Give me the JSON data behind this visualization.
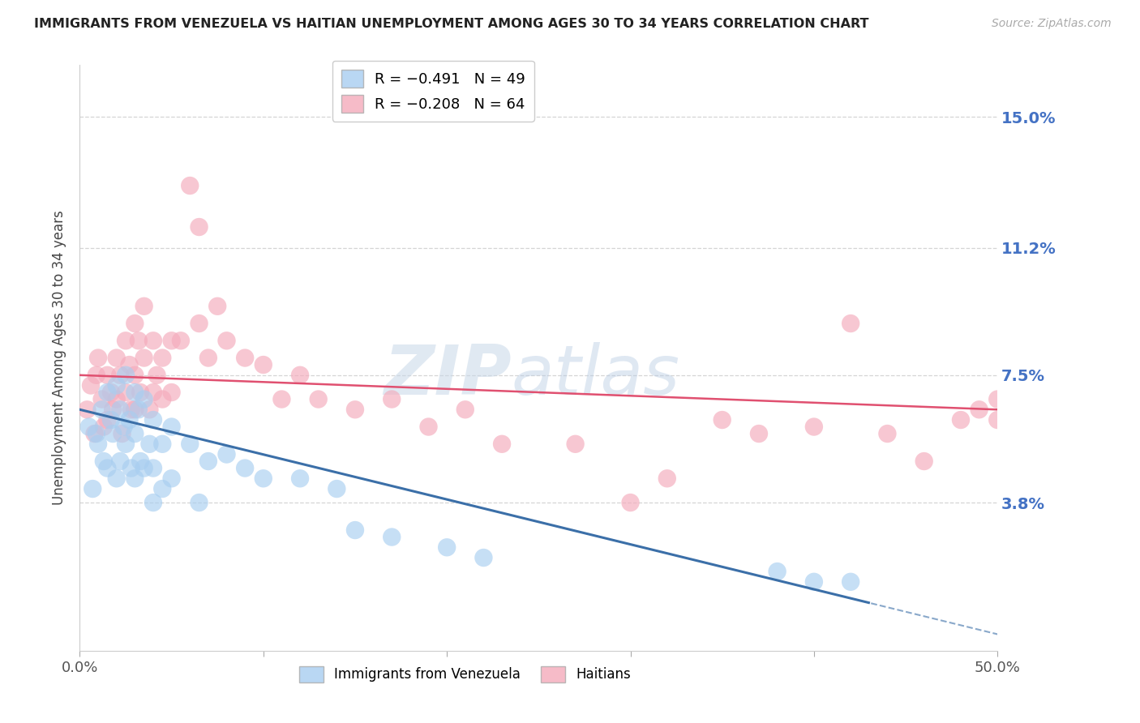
{
  "title": "IMMIGRANTS FROM VENEZUELA VS HAITIAN UNEMPLOYMENT AMONG AGES 30 TO 34 YEARS CORRELATION CHART",
  "source": "Source: ZipAtlas.com",
  "ylabel": "Unemployment Among Ages 30 to 34 years",
  "xlim": [
    0.0,
    0.5
  ],
  "ylim": [
    -0.005,
    0.165
  ],
  "yticks": [
    0.038,
    0.075,
    0.112,
    0.15
  ],
  "ytick_labels": [
    "3.8%",
    "7.5%",
    "11.2%",
    "15.0%"
  ],
  "xticks": [
    0.0,
    0.1,
    0.2,
    0.3,
    0.4,
    0.5
  ],
  "xtick_labels": [
    "0.0%",
    "",
    "",
    "",
    "",
    "50.0%"
  ],
  "legend_entry1": "R = −0.491   N = 49",
  "legend_entry2": "R = −0.208   N = 64",
  "color_blue": "#A8CEF0",
  "color_pink": "#F4AABB",
  "color_blue_line": "#3B6FA8",
  "color_pink_line": "#E05070",
  "watermark_zip": "ZIP",
  "watermark_atlas": "atlas",
  "venezuela_x": [
    0.005,
    0.007,
    0.009,
    0.01,
    0.012,
    0.013,
    0.015,
    0.015,
    0.017,
    0.018,
    0.02,
    0.02,
    0.022,
    0.022,
    0.024,
    0.025,
    0.025,
    0.027,
    0.028,
    0.03,
    0.03,
    0.03,
    0.032,
    0.033,
    0.035,
    0.035,
    0.038,
    0.04,
    0.04,
    0.04,
    0.045,
    0.045,
    0.05,
    0.05,
    0.06,
    0.065,
    0.07,
    0.08,
    0.09,
    0.1,
    0.12,
    0.14,
    0.15,
    0.17,
    0.2,
    0.22,
    0.38,
    0.4,
    0.42
  ],
  "venezuela_y": [
    0.06,
    0.042,
    0.058,
    0.055,
    0.065,
    0.05,
    0.07,
    0.048,
    0.062,
    0.058,
    0.072,
    0.045,
    0.065,
    0.05,
    0.06,
    0.075,
    0.055,
    0.062,
    0.048,
    0.07,
    0.058,
    0.045,
    0.065,
    0.05,
    0.068,
    0.048,
    0.055,
    0.062,
    0.048,
    0.038,
    0.055,
    0.042,
    0.06,
    0.045,
    0.055,
    0.038,
    0.05,
    0.052,
    0.048,
    0.045,
    0.045,
    0.042,
    0.03,
    0.028,
    0.025,
    0.022,
    0.018,
    0.015,
    0.015
  ],
  "haitian_x": [
    0.004,
    0.006,
    0.008,
    0.009,
    0.01,
    0.012,
    0.013,
    0.015,
    0.015,
    0.017,
    0.018,
    0.02,
    0.02,
    0.022,
    0.023,
    0.025,
    0.025,
    0.027,
    0.028,
    0.03,
    0.03,
    0.03,
    0.032,
    0.033,
    0.035,
    0.035,
    0.038,
    0.04,
    0.04,
    0.042,
    0.045,
    0.045,
    0.05,
    0.05,
    0.055,
    0.06,
    0.065,
    0.065,
    0.07,
    0.075,
    0.08,
    0.09,
    0.1,
    0.11,
    0.12,
    0.13,
    0.15,
    0.17,
    0.19,
    0.21,
    0.23,
    0.27,
    0.3,
    0.32,
    0.35,
    0.37,
    0.4,
    0.42,
    0.44,
    0.46,
    0.48,
    0.49,
    0.5,
    0.5
  ],
  "haitian_y": [
    0.065,
    0.072,
    0.058,
    0.075,
    0.08,
    0.068,
    0.06,
    0.075,
    0.062,
    0.07,
    0.065,
    0.08,
    0.068,
    0.075,
    0.058,
    0.085,
    0.07,
    0.078,
    0.065,
    0.09,
    0.075,
    0.065,
    0.085,
    0.07,
    0.095,
    0.08,
    0.065,
    0.085,
    0.07,
    0.075,
    0.08,
    0.068,
    0.085,
    0.07,
    0.085,
    0.13,
    0.118,
    0.09,
    0.08,
    0.095,
    0.085,
    0.08,
    0.078,
    0.068,
    0.075,
    0.068,
    0.065,
    0.068,
    0.06,
    0.065,
    0.055,
    0.055,
    0.038,
    0.045,
    0.062,
    0.058,
    0.06,
    0.09,
    0.058,
    0.05,
    0.062,
    0.065,
    0.062,
    0.068
  ]
}
